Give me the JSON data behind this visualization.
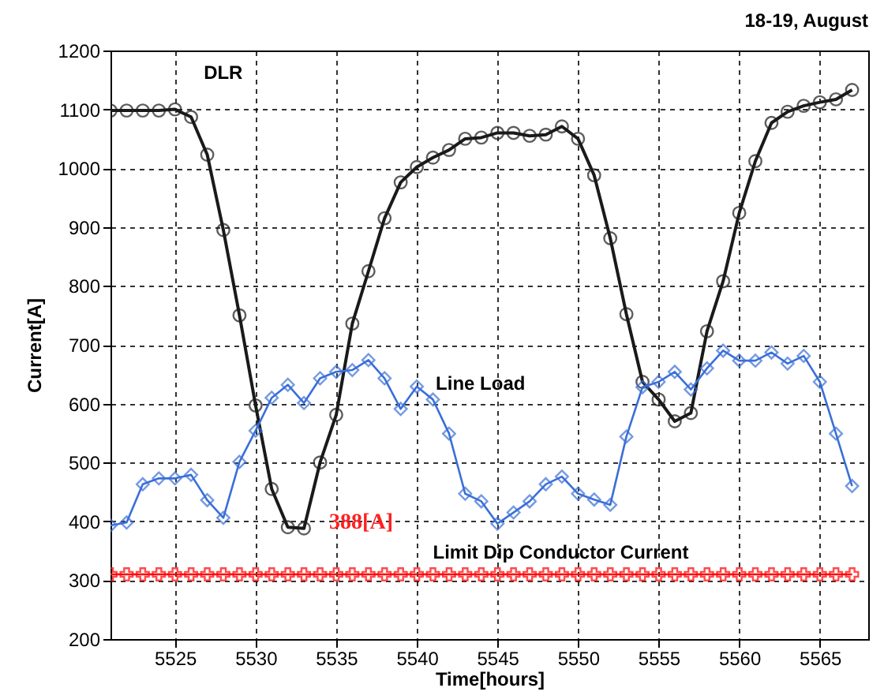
{
  "chart_data": {
    "type": "line",
    "title": "18-19, August",
    "xlabel": "Time[hours]",
    "ylabel": "Current[A]",
    "x": [
      5521,
      5522,
      5523,
      5524,
      5525,
      5526,
      5527,
      5528,
      5529,
      5530,
      5531,
      5532,
      5533,
      5534,
      5535,
      5536,
      5537,
      5538,
      5539,
      5540,
      5541,
      5542,
      5543,
      5544,
      5545,
      5546,
      5547,
      5548,
      5549,
      5550,
      5551,
      5552,
      5553,
      5554,
      5555,
      5556,
      5557,
      5558,
      5559,
      5560,
      5561,
      5562,
      5563,
      5564,
      5565,
      5566,
      5567
    ],
    "series": [
      {
        "name": "DLR",
        "color": "#1a1a1a",
        "marker": "circle",
        "values": [
          1098,
          1098,
          1098,
          1098,
          1100,
          1087,
          1023,
          895,
          750,
          597,
          455,
          390,
          388,
          500,
          581,
          736,
          825,
          915,
          976,
          1002,
          1018,
          1031,
          1050,
          1052,
          1060,
          1060,
          1055,
          1057,
          1071,
          1050,
          988,
          881,
          752,
          637,
          607,
          570,
          584,
          723,
          808,
          924,
          1012,
          1077,
          1096,
          1106,
          1112,
          1117,
          1133
        ]
      },
      {
        "name": "Line Load",
        "color": "#3a6fd8",
        "marker": "diamond",
        "values": [
          393,
          398,
          463,
          473,
          473,
          479,
          436,
          406,
          501,
          554,
          610,
          632,
          601,
          643,
          654,
          657,
          674,
          643,
          591,
          629,
          607,
          549,
          447,
          434,
          396,
          415,
          434,
          463,
          476,
          447,
          437,
          428,
          544,
          628,
          637,
          654,
          624,
          660,
          690,
          673,
          673,
          687,
          668,
          681,
          637,
          549,
          460
        ]
      },
      {
        "name": "Limit Dip Conductor Current",
        "color": "#ff0000",
        "marker": "cross",
        "values": [
          310,
          310,
          310,
          310,
          310,
          310,
          310,
          310,
          310,
          310,
          310,
          310,
          310,
          310,
          310,
          310,
          310,
          310,
          310,
          310,
          310,
          310,
          310,
          310,
          310,
          310,
          310,
          310,
          310,
          310,
          310,
          310,
          310,
          310,
          310,
          310,
          310,
          310,
          310,
          310,
          310,
          310,
          310,
          310,
          310,
          310,
          310
        ]
      }
    ],
    "annotations": [
      {
        "text": "388[A]",
        "x": 5533,
        "y": 388
      }
    ],
    "xlim": [
      5521,
      5568
    ],
    "xticks": [
      5525,
      5530,
      5535,
      5540,
      5545,
      5550,
      5555,
      5560,
      5565
    ],
    "ylim": [
      200,
      1200
    ],
    "yticks": [
      200,
      300,
      400,
      500,
      600,
      700,
      800,
      900,
      1000,
      1100,
      1200
    ],
    "grid": true,
    "line_style": "solid"
  }
}
